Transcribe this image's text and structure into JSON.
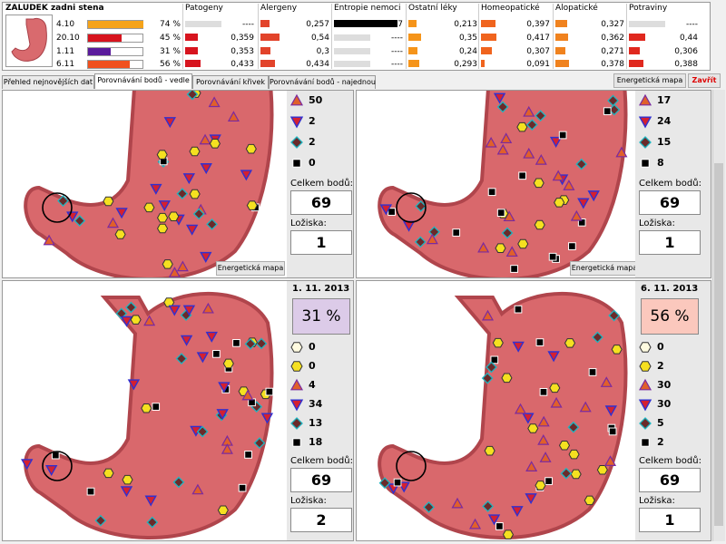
{
  "header": {
    "title": "ZALUDEK zadni stena",
    "rows": [
      {
        "date": "4.10",
        "percent": 74,
        "percent_label": "74 %",
        "color": "#f5a31a"
      },
      {
        "date": "20.10",
        "percent": 45,
        "percent_label": "45 %",
        "color": "#d7141e"
      },
      {
        "date": "1.11",
        "percent": 31,
        "percent_label": "31 %",
        "color": "#5a1b9c"
      },
      {
        "date": "6.11",
        "percent": 56,
        "percent_label": "56 %",
        "color": "#f0501e"
      }
    ],
    "columns": [
      {
        "name": "Patogeny",
        "color": "#d7141e",
        "cells": [
          {
            "value": null,
            "label": "----"
          },
          {
            "value": 0.359,
            "label": "0,359"
          },
          {
            "value": 0.353,
            "label": "0,353"
          },
          {
            "value": 0.433,
            "label": "0,433"
          }
        ]
      },
      {
        "name": "Alergeny",
        "color": "#e2432a",
        "cells": [
          {
            "value": 0.257,
            "label": "0,257"
          },
          {
            "value": 0.54,
            "label": "0,54"
          },
          {
            "value": 0.3,
            "label": "0,3"
          },
          {
            "value": 0.434,
            "label": "0,434"
          }
        ]
      },
      {
        "name": "Entropie nemoci",
        "color": "#000000",
        "cells": [
          {
            "value": 7,
            "label": "7"
          },
          {
            "value": null,
            "label": "----"
          },
          {
            "value": null,
            "label": "----"
          },
          {
            "value": null,
            "label": "----"
          }
        ]
      },
      {
        "name": "Ostatní léky",
        "color": "#f5941a",
        "cells": [
          {
            "value": 0.213,
            "label": "0,213"
          },
          {
            "value": 0.35,
            "label": "0,35"
          },
          {
            "value": 0.24,
            "label": "0,24"
          },
          {
            "value": 0.293,
            "label": "0,293"
          }
        ]
      },
      {
        "name": "Homeopatické",
        "color": "#f0641e",
        "cells": [
          {
            "value": 0.397,
            "label": "0,397"
          },
          {
            "value": 0.417,
            "label": "0,417"
          },
          {
            "value": 0.307,
            "label": "0,307"
          },
          {
            "value": 0.091,
            "label": "0,091"
          }
        ]
      },
      {
        "name": "Alopatické",
        "color": "#f0821e",
        "cells": [
          {
            "value": 0.327,
            "label": "0,327"
          },
          {
            "value": 0.362,
            "label": "0,362"
          },
          {
            "value": 0.271,
            "label": "0,271"
          },
          {
            "value": 0.378,
            "label": "0,378"
          }
        ]
      },
      {
        "name": "Potraviny",
        "color": "#e0281e",
        "cells": [
          {
            "value": null,
            "label": "----"
          },
          {
            "value": 0.44,
            "label": "0,44"
          },
          {
            "value": 0.306,
            "label": "0,306"
          },
          {
            "value": 0.388,
            "label": "0,388"
          }
        ]
      }
    ]
  },
  "tabs": {
    "items": [
      "Přehled nejnovějších dat",
      "Porovnávání bodů - vedle",
      "Porovnávání křivek",
      "Porovnávání bodů - najednou"
    ],
    "active": 1
  },
  "buttons": {
    "energy": "Energetická mapa",
    "close": "Zavřít"
  },
  "panels": [
    {
      "counts": [
        {
          "symbol": "triangle",
          "value": 50
        },
        {
          "symbol": "triangle-down",
          "value": 2
        },
        {
          "symbol": "diamond",
          "value": 2
        },
        {
          "symbol": "square",
          "value": 0
        }
      ],
      "total_label": "Celkem bodů:",
      "total": 69,
      "foci_label": "Ložiska:",
      "foci": 1,
      "button": "Energetická mapa"
    },
    {
      "counts": [
        {
          "symbol": "triangle",
          "value": 17
        },
        {
          "symbol": "triangle-down",
          "value": 24
        },
        {
          "symbol": "diamond",
          "value": 15
        },
        {
          "symbol": "square",
          "value": 8
        }
      ],
      "total_label": "Celkem bodů:",
      "total": 69,
      "foci_label": "Ložiska:",
      "foci": 1,
      "button": "Energetická mapa"
    },
    {
      "date": "1. 11. 2013",
      "percent_label": "31 %",
      "percent_color": "#dccbe8",
      "counts": [
        {
          "symbol": "hexagon-white",
          "value": 0
        },
        {
          "symbol": "hexagon-yellow",
          "value": 0
        },
        {
          "symbol": "triangle",
          "value": 4
        },
        {
          "symbol": "triangle-down",
          "value": 34
        },
        {
          "symbol": "diamond",
          "value": 13
        },
        {
          "symbol": "square",
          "value": 18
        }
      ],
      "total_label": "Celkem bodů:",
      "total": 69,
      "foci_label": "Ložiska:",
      "foci": 2
    },
    {
      "date": "6. 11. 2013",
      "percent_label": "56 %",
      "percent_color": "#fbc8bd",
      "counts": [
        {
          "symbol": "hexagon-white",
          "value": 0
        },
        {
          "symbol": "hexagon-yellow",
          "value": 2
        },
        {
          "symbol": "triangle",
          "value": 30
        },
        {
          "symbol": "triangle-down",
          "value": 30
        },
        {
          "symbol": "diamond",
          "value": 5
        },
        {
          "symbol": "square",
          "value": 2
        }
      ],
      "total_label": "Celkem bodů:",
      "total": 69,
      "foci_label": "Ložiska:",
      "foci": 1
    }
  ]
}
